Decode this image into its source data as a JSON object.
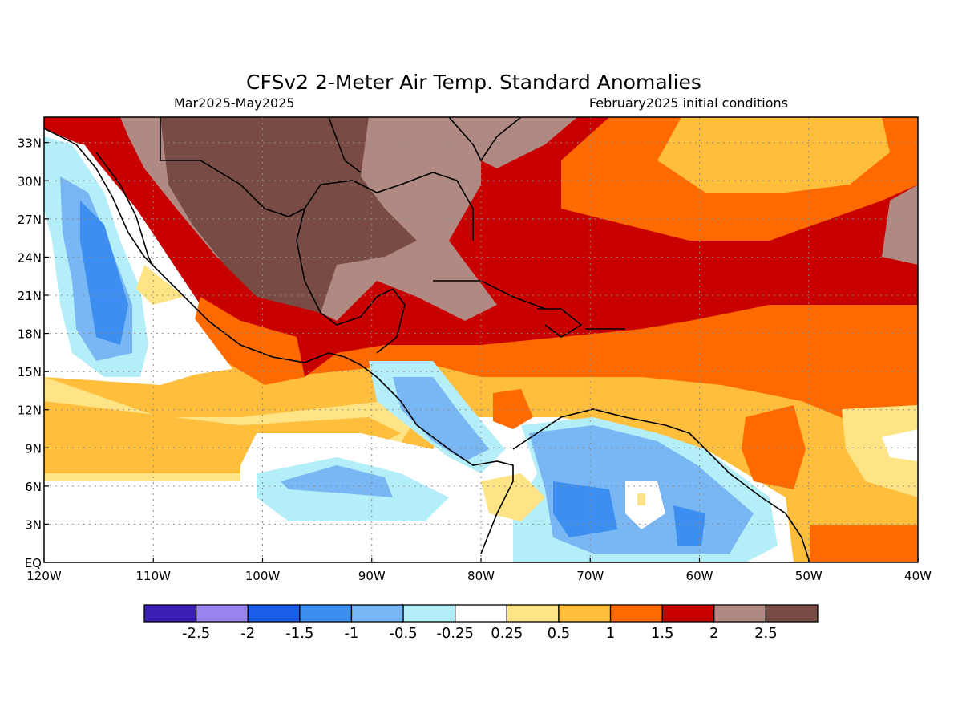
{
  "title": "CFSv2 2-Meter Air Temp. Standard Anomalies",
  "subtitle_left": "Mar2025-May2025",
  "subtitle_right": "February2025 initial conditions",
  "map": {
    "lon_range": [
      -120,
      -40
    ],
    "lat_range": [
      0,
      35
    ],
    "lon_ticks": [
      "120W",
      "110W",
      "100W",
      "90W",
      "80W",
      "70W",
      "60W",
      "50W",
      "40W"
    ],
    "lat_ticks": [
      "EQ",
      "3N",
      "6N",
      "9N",
      "12N",
      "15N",
      "18N",
      "21N",
      "24N",
      "27N",
      "30N",
      "33N"
    ],
    "grid": "dotted"
  },
  "colorbar": {
    "colors": [
      "#3b1fb4",
      "#9b84ee",
      "#1a5ee8",
      "#3c8ef0",
      "#78b6f4",
      "#b4eef8",
      "#ffffff",
      "#ffe486",
      "#ffbe3c",
      "#ff6a00",
      "#c80000",
      "#b08a82",
      "#784c44"
    ],
    "labels": [
      "-2.5",
      "-2",
      "-1.5",
      "-1",
      "-0.5",
      "-0.25",
      "0.25",
      "0.5",
      "1",
      "1.5",
      "2",
      "2.5"
    ]
  }
}
